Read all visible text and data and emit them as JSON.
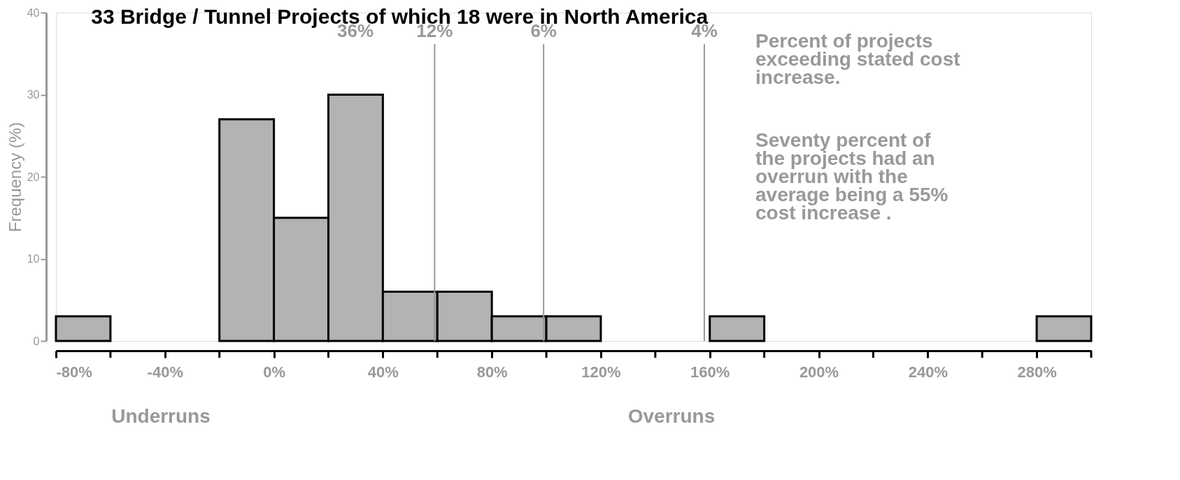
{
  "chart_data": {
    "type": "histogram",
    "title": "33 Bridge / Tunnel Projects of which 18 were in North America",
    "ylabel": "Frequency (%)",
    "bins": [
      -80,
      -60,
      -40,
      -20,
      0,
      20,
      40,
      60,
      80,
      100,
      120,
      140,
      160,
      180,
      200,
      220,
      240,
      260,
      280,
      300
    ],
    "values": [
      3,
      0,
      0,
      27,
      15,
      30,
      6,
      6,
      3,
      3,
      0,
      0,
      3,
      0,
      0,
      0,
      0,
      0,
      3
    ],
    "color": "#b3b3b3",
    "xlim": [
      -80,
      300
    ],
    "ylim": [
      0,
      40
    ],
    "xticks": [
      {
        "value": -80,
        "label": "-80%"
      },
      {
        "value": -40,
        "label": "-40%"
      },
      {
        "value": 0,
        "label": "0%"
      },
      {
        "value": 40,
        "label": "40%"
      },
      {
        "value": 80,
        "label": "80%"
      },
      {
        "value": 120,
        "label": "120%"
      },
      {
        "value": 160,
        "label": "160%"
      },
      {
        "value": 200,
        "label": "200%"
      },
      {
        "value": 240,
        "label": "240%"
      },
      {
        "value": 280,
        "label": "280%"
      }
    ],
    "yticks": [
      0,
      10,
      20,
      30,
      40
    ],
    "grid": false,
    "ref_lines": [
      {
        "axis": "x",
        "value": 59,
        "color": "#999999"
      },
      {
        "axis": "x",
        "value": 99,
        "color": "#999999"
      },
      {
        "axis": "x",
        "value": 158,
        "color": "#999999"
      }
    ],
    "annotations": [
      "36%",
      "12%",
      "6%",
      "4%",
      "Percent of projects\nexceeding stated cost\nincrease.",
      "Seventy percent of\nthe projects had an\noverrun with the\naverage being a 55%\ncost increase .",
      "Underruns",
      "Overruns"
    ]
  }
}
